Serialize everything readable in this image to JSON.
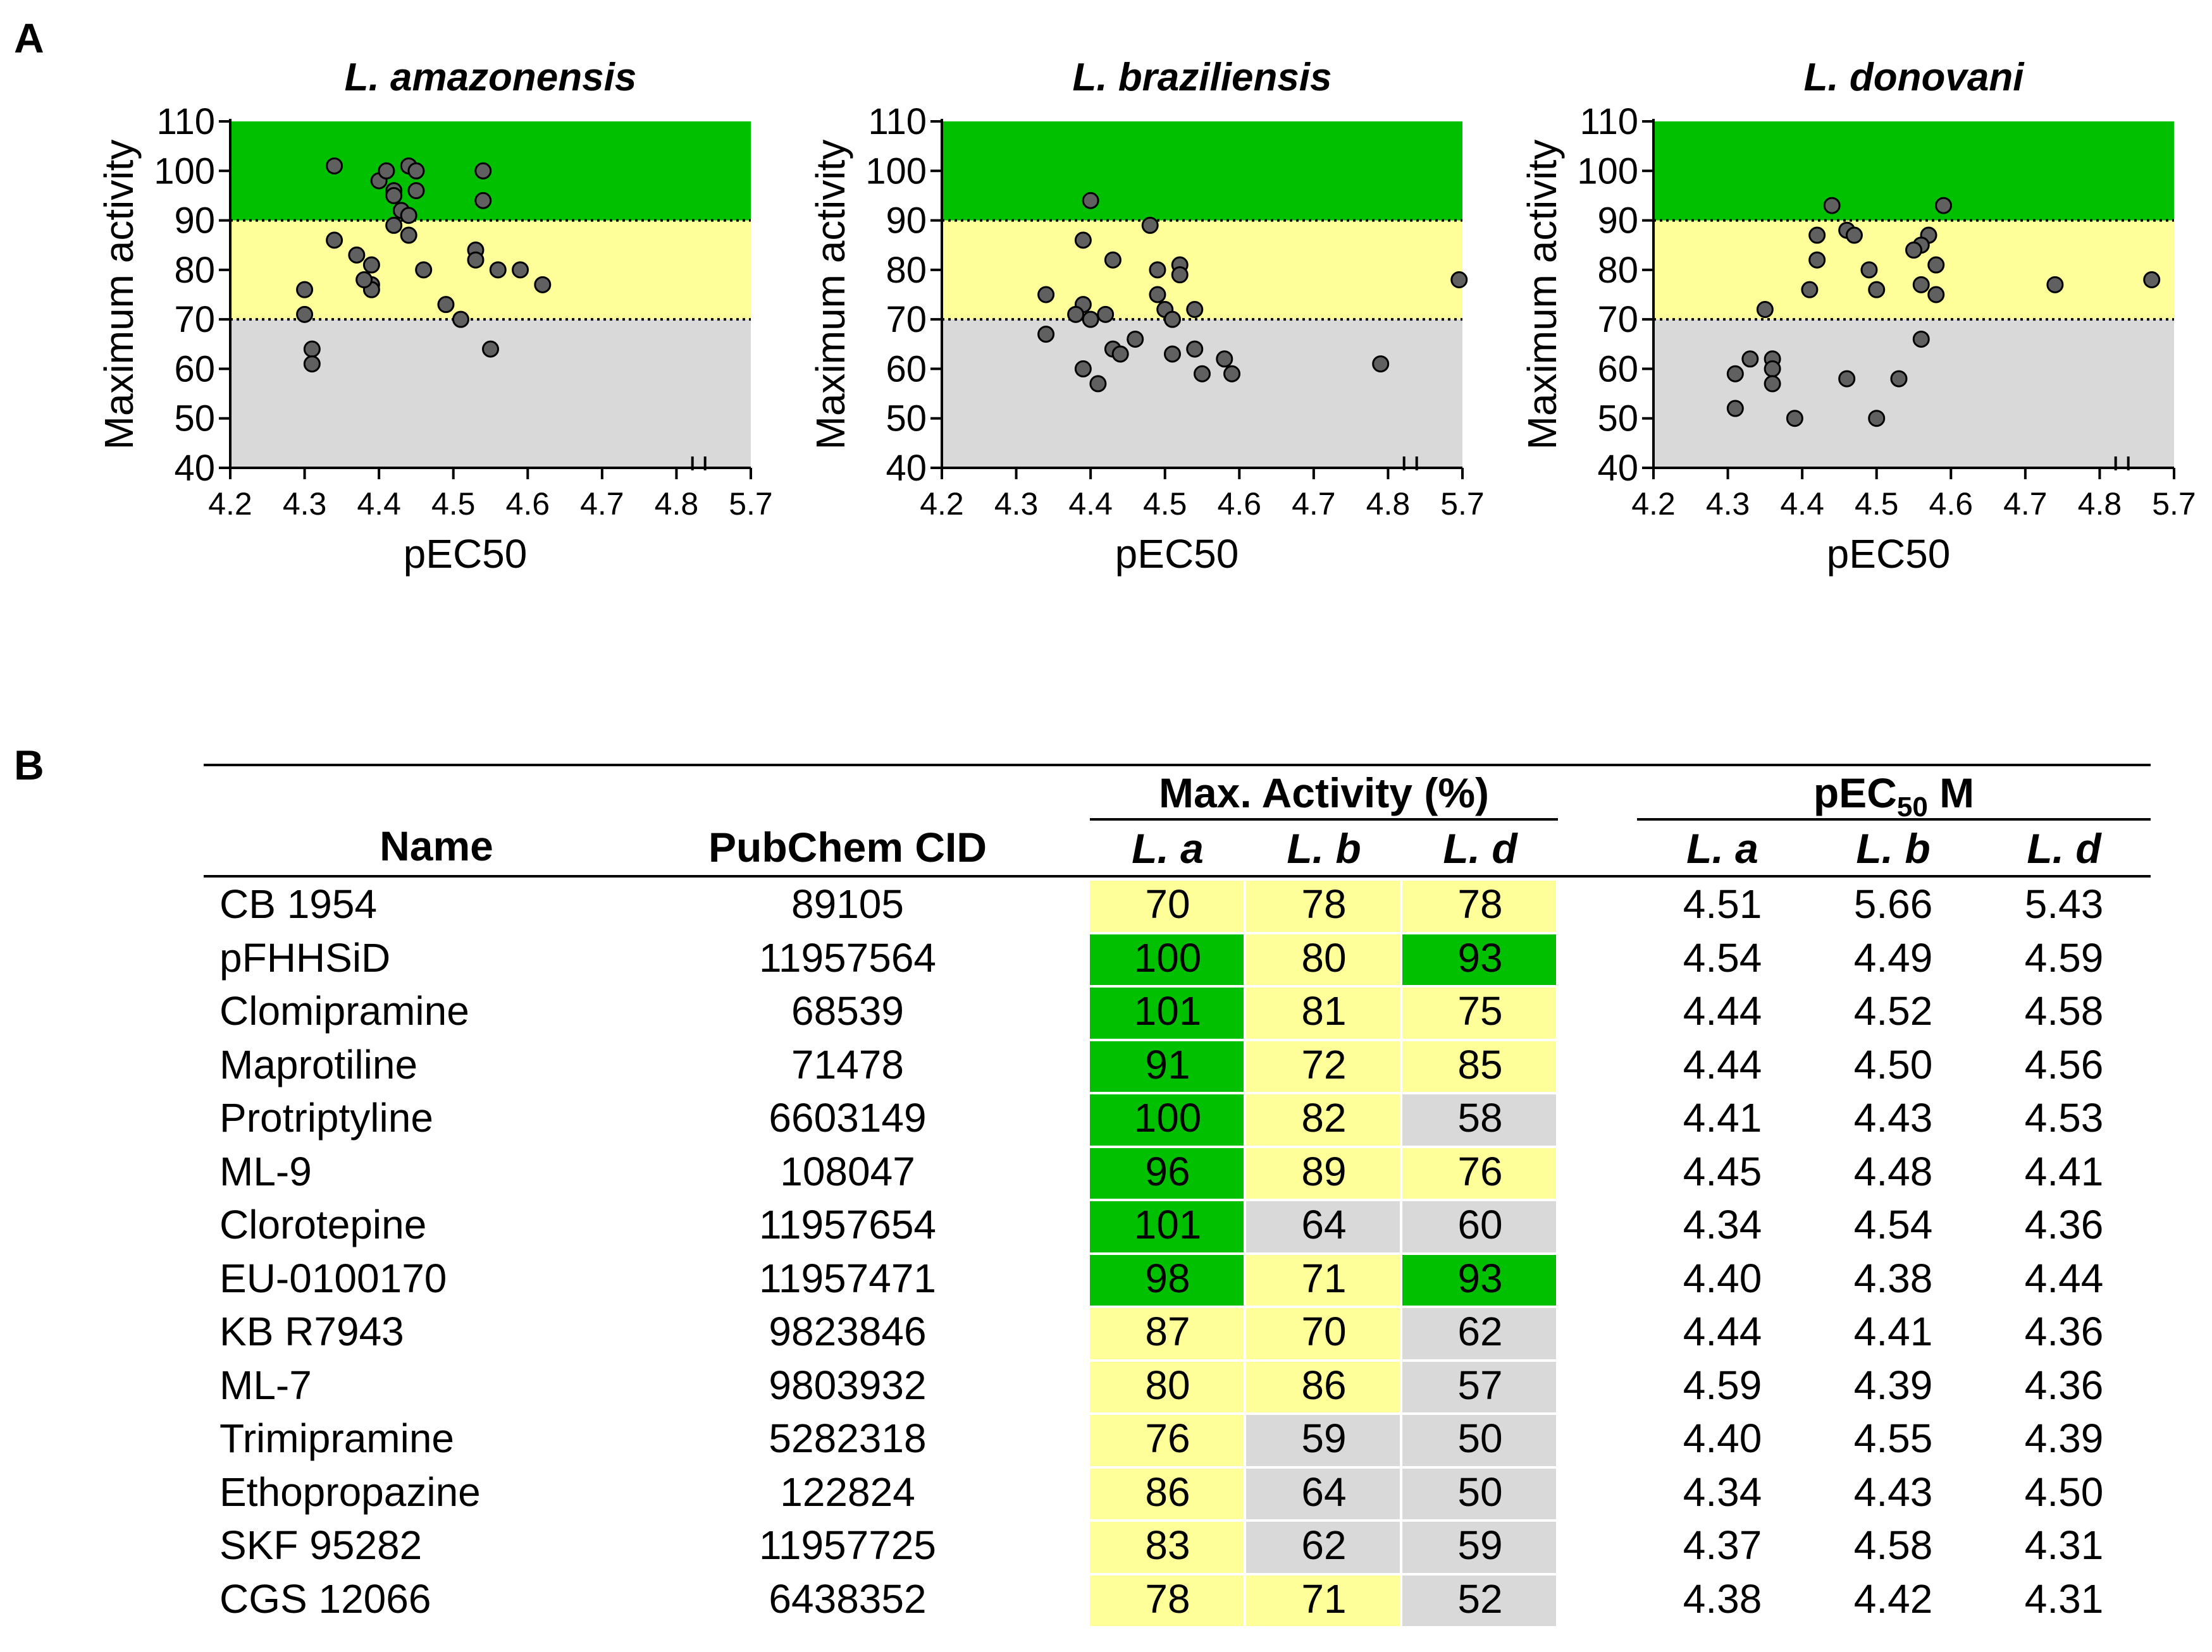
{
  "panel_labels": {
    "a": "A",
    "b": "B"
  },
  "colors": {
    "green": "#00c000",
    "yellow": "#ffff99",
    "gray": "#d9d9d9",
    "point": "#606060"
  },
  "chart_data": [
    {
      "type": "scatter",
      "title": "L. amazonensis",
      "xlabel": "pEC50",
      "ylabel": "Maximum activity",
      "xticks": [
        "4.2",
        "4.3",
        "4.4",
        "4.5",
        "4.6",
        "4.7",
        "4.8",
        "5.7"
      ],
      "yticks": [
        "40",
        "50",
        "60",
        "70",
        "80",
        "90",
        "100",
        "110"
      ],
      "ylim": [
        40,
        110
      ],
      "bands": [
        {
          "from": 40,
          "to": 70,
          "color": "gray"
        },
        {
          "from": 70,
          "to": 90,
          "color": "yellow"
        },
        {
          "from": 90,
          "to": 110,
          "color": "green"
        }
      ],
      "threshold_lines": [
        70,
        90
      ],
      "axis_break": true,
      "points": [
        [
          4.34,
          101
        ],
        [
          4.4,
          98
        ],
        [
          4.41,
          100
        ],
        [
          4.42,
          96
        ],
        [
          4.42,
          95
        ],
        [
          4.44,
          101
        ],
        [
          4.45,
          100
        ],
        [
          4.45,
          96
        ],
        [
          4.43,
          92
        ],
        [
          4.44,
          91
        ],
        [
          4.42,
          89
        ],
        [
          4.44,
          87
        ],
        [
          4.54,
          100
        ],
        [
          4.54,
          94
        ],
        [
          4.34,
          86
        ],
        [
          4.37,
          83
        ],
        [
          4.39,
          81
        ],
        [
          4.39,
          77
        ],
        [
          4.39,
          76
        ],
        [
          4.38,
          78
        ],
        [
          4.46,
          80
        ],
        [
          4.53,
          84
        ],
        [
          4.53,
          82
        ],
        [
          4.56,
          80
        ],
        [
          4.59,
          80
        ],
        [
          4.62,
          77
        ],
        [
          4.3,
          76
        ],
        [
          4.3,
          71
        ],
        [
          4.49,
          73
        ],
        [
          4.51,
          70
        ],
        [
          4.31,
          64
        ],
        [
          4.31,
          61
        ],
        [
          4.55,
          64
        ]
      ]
    },
    {
      "type": "scatter",
      "title": "L. braziliensis",
      "xlabel": "pEC50",
      "ylabel": "Maximum activity",
      "xticks": [
        "4.2",
        "4.3",
        "4.4",
        "4.5",
        "4.6",
        "4.7",
        "4.8",
        "5.7"
      ],
      "yticks": [
        "40",
        "50",
        "60",
        "70",
        "80",
        "90",
        "100",
        "110"
      ],
      "ylim": [
        40,
        110
      ],
      "bands": [
        {
          "from": 40,
          "to": 70,
          "color": "gray"
        },
        {
          "from": 70,
          "to": 90,
          "color": "yellow"
        },
        {
          "from": 90,
          "to": 110,
          "color": "green"
        }
      ],
      "threshold_lines": [
        70,
        90
      ],
      "axis_break": true,
      "points": [
        [
          4.4,
          94
        ],
        [
          4.48,
          89
        ],
        [
          4.39,
          86
        ],
        [
          4.43,
          82
        ],
        [
          4.52,
          81
        ],
        [
          4.49,
          80
        ],
        [
          4.52,
          79
        ],
        [
          4.34,
          75
        ],
        [
          4.49,
          75
        ],
        [
          4.39,
          73
        ],
        [
          4.38,
          71
        ],
        [
          4.4,
          70
        ],
        [
          4.42,
          71
        ],
        [
          4.5,
          72
        ],
        [
          4.51,
          70
        ],
        [
          4.54,
          72
        ],
        [
          4.34,
          67
        ],
        [
          4.46,
          66
        ],
        [
          4.43,
          64
        ],
        [
          4.44,
          63
        ],
        [
          4.51,
          63
        ],
        [
          4.54,
          64
        ],
        [
          4.58,
          62
        ],
        [
          4.39,
          60
        ],
        [
          4.55,
          59
        ],
        [
          4.59,
          59
        ],
        [
          4.41,
          57
        ],
        [
          4.79,
          61
        ],
        [
          5.66,
          78
        ]
      ]
    },
    {
      "type": "scatter",
      "title": "L. donovani",
      "xlabel": "pEC50",
      "ylabel": "Maximum activity",
      "xticks": [
        "4.2",
        "4.3",
        "4.4",
        "4.5",
        "4.6",
        "4.7",
        "4.8",
        "5.7"
      ],
      "yticks": [
        "40",
        "50",
        "60",
        "70",
        "80",
        "90",
        "100",
        "110"
      ],
      "ylim": [
        40,
        110
      ],
      "bands": [
        {
          "from": 40,
          "to": 70,
          "color": "gray"
        },
        {
          "from": 70,
          "to": 90,
          "color": "yellow"
        },
        {
          "from": 90,
          "to": 110,
          "color": "green"
        }
      ],
      "threshold_lines": [
        70,
        90
      ],
      "axis_break": true,
      "points": [
        [
          4.44,
          93
        ],
        [
          4.59,
          93
        ],
        [
          4.46,
          88
        ],
        [
          4.47,
          87
        ],
        [
          4.42,
          87
        ],
        [
          4.57,
          87
        ],
        [
          4.56,
          85
        ],
        [
          4.55,
          84
        ],
        [
          4.42,
          82
        ],
        [
          4.58,
          81
        ],
        [
          4.49,
          80
        ],
        [
          4.41,
          76
        ],
        [
          4.5,
          76
        ],
        [
          4.56,
          77
        ],
        [
          4.58,
          75
        ],
        [
          4.74,
          77
        ],
        [
          5.43,
          78
        ],
        [
          4.35,
          72
        ],
        [
          4.56,
          66
        ],
        [
          4.33,
          62
        ],
        [
          4.36,
          62
        ],
        [
          4.36,
          60
        ],
        [
          4.31,
          59
        ],
        [
          4.46,
          58
        ],
        [
          4.53,
          58
        ],
        [
          4.36,
          57
        ],
        [
          4.31,
          52
        ],
        [
          4.39,
          50
        ],
        [
          4.5,
          50
        ]
      ]
    },
    {
      "type": "table",
      "header": {
        "name": "Name",
        "cid": "PubChem CID",
        "max_group": "Max. Activity (%)",
        "pec_group_pre": "pEC",
        "pec_group_sub": "50",
        "pec_group_post": " M",
        "sub": [
          "L. a",
          "L. b",
          "L. d"
        ]
      },
      "rows": [
        {
          "name": "CB 1954",
          "cid": "89105",
          "max": [
            "70",
            "78",
            "78"
          ],
          "max_color": [
            "yellow",
            "yellow",
            "yellow"
          ],
          "pec": [
            "4.51",
            "5.66",
            "5.43"
          ]
        },
        {
          "name": "pFHHSiD",
          "cid": "11957564",
          "max": [
            "100",
            "80",
            "93"
          ],
          "max_color": [
            "green",
            "yellow",
            "green"
          ],
          "pec": [
            "4.54",
            "4.49",
            "4.59"
          ]
        },
        {
          "name": "Clomipramine",
          "cid": "68539",
          "max": [
            "101",
            "81",
            "75"
          ],
          "max_color": [
            "green",
            "yellow",
            "yellow"
          ],
          "pec": [
            "4.44",
            "4.52",
            "4.58"
          ]
        },
        {
          "name": "Maprotiline",
          "cid": "71478",
          "max": [
            "91",
            "72",
            "85"
          ],
          "max_color": [
            "green",
            "yellow",
            "yellow"
          ],
          "pec": [
            "4.44",
            "4.50",
            "4.56"
          ]
        },
        {
          "name": "Protriptyline",
          "cid": "6603149",
          "max": [
            "100",
            "82",
            "58"
          ],
          "max_color": [
            "green",
            "yellow",
            "gray"
          ],
          "pec": [
            "4.41",
            "4.43",
            "4.53"
          ]
        },
        {
          "name": "ML-9",
          "cid": "108047",
          "max": [
            "96",
            "89",
            "76"
          ],
          "max_color": [
            "green",
            "yellow",
            "yellow"
          ],
          "pec": [
            "4.45",
            "4.48",
            "4.41"
          ]
        },
        {
          "name": "Clorotepine",
          "cid": "11957654",
          "max": [
            "101",
            "64",
            "60"
          ],
          "max_color": [
            "green",
            "gray",
            "gray"
          ],
          "pec": [
            "4.34",
            "4.54",
            "4.36"
          ]
        },
        {
          "name": "EU-0100170",
          "cid": "11957471",
          "max": [
            "98",
            "71",
            "93"
          ],
          "max_color": [
            "green",
            "yellow",
            "green"
          ],
          "pec": [
            "4.40",
            "4.38",
            "4.44"
          ]
        },
        {
          "name": "KB R7943",
          "cid": "9823846",
          "max": [
            "87",
            "70",
            "62"
          ],
          "max_color": [
            "yellow",
            "yellow",
            "gray"
          ],
          "pec": [
            "4.44",
            "4.41",
            "4.36"
          ]
        },
        {
          "name": "ML-7",
          "cid": "9803932",
          "max": [
            "80",
            "86",
            "57"
          ],
          "max_color": [
            "yellow",
            "yellow",
            "gray"
          ],
          "pec": [
            "4.59",
            "4.39",
            "4.36"
          ]
        },
        {
          "name": "Trimipramine",
          "cid": "5282318",
          "max": [
            "76",
            "59",
            "50"
          ],
          "max_color": [
            "yellow",
            "gray",
            "gray"
          ],
          "pec": [
            "4.40",
            "4.55",
            "4.39"
          ]
        },
        {
          "name": "Ethopropazine",
          "cid": "122824",
          "max": [
            "86",
            "64",
            "50"
          ],
          "max_color": [
            "yellow",
            "gray",
            "gray"
          ],
          "pec": [
            "4.34",
            "4.43",
            "4.50"
          ]
        },
        {
          "name": "SKF 95282",
          "cid": "11957725",
          "max": [
            "83",
            "62",
            "59"
          ],
          "max_color": [
            "yellow",
            "gray",
            "gray"
          ],
          "pec": [
            "4.37",
            "4.58",
            "4.31"
          ]
        },
        {
          "name": "CGS 12066",
          "cid": "6438352",
          "max": [
            "78",
            "71",
            "52"
          ],
          "max_color": [
            "yellow",
            "yellow",
            "gray"
          ],
          "pec": [
            "4.38",
            "4.42",
            "4.31"
          ]
        }
      ]
    }
  ]
}
